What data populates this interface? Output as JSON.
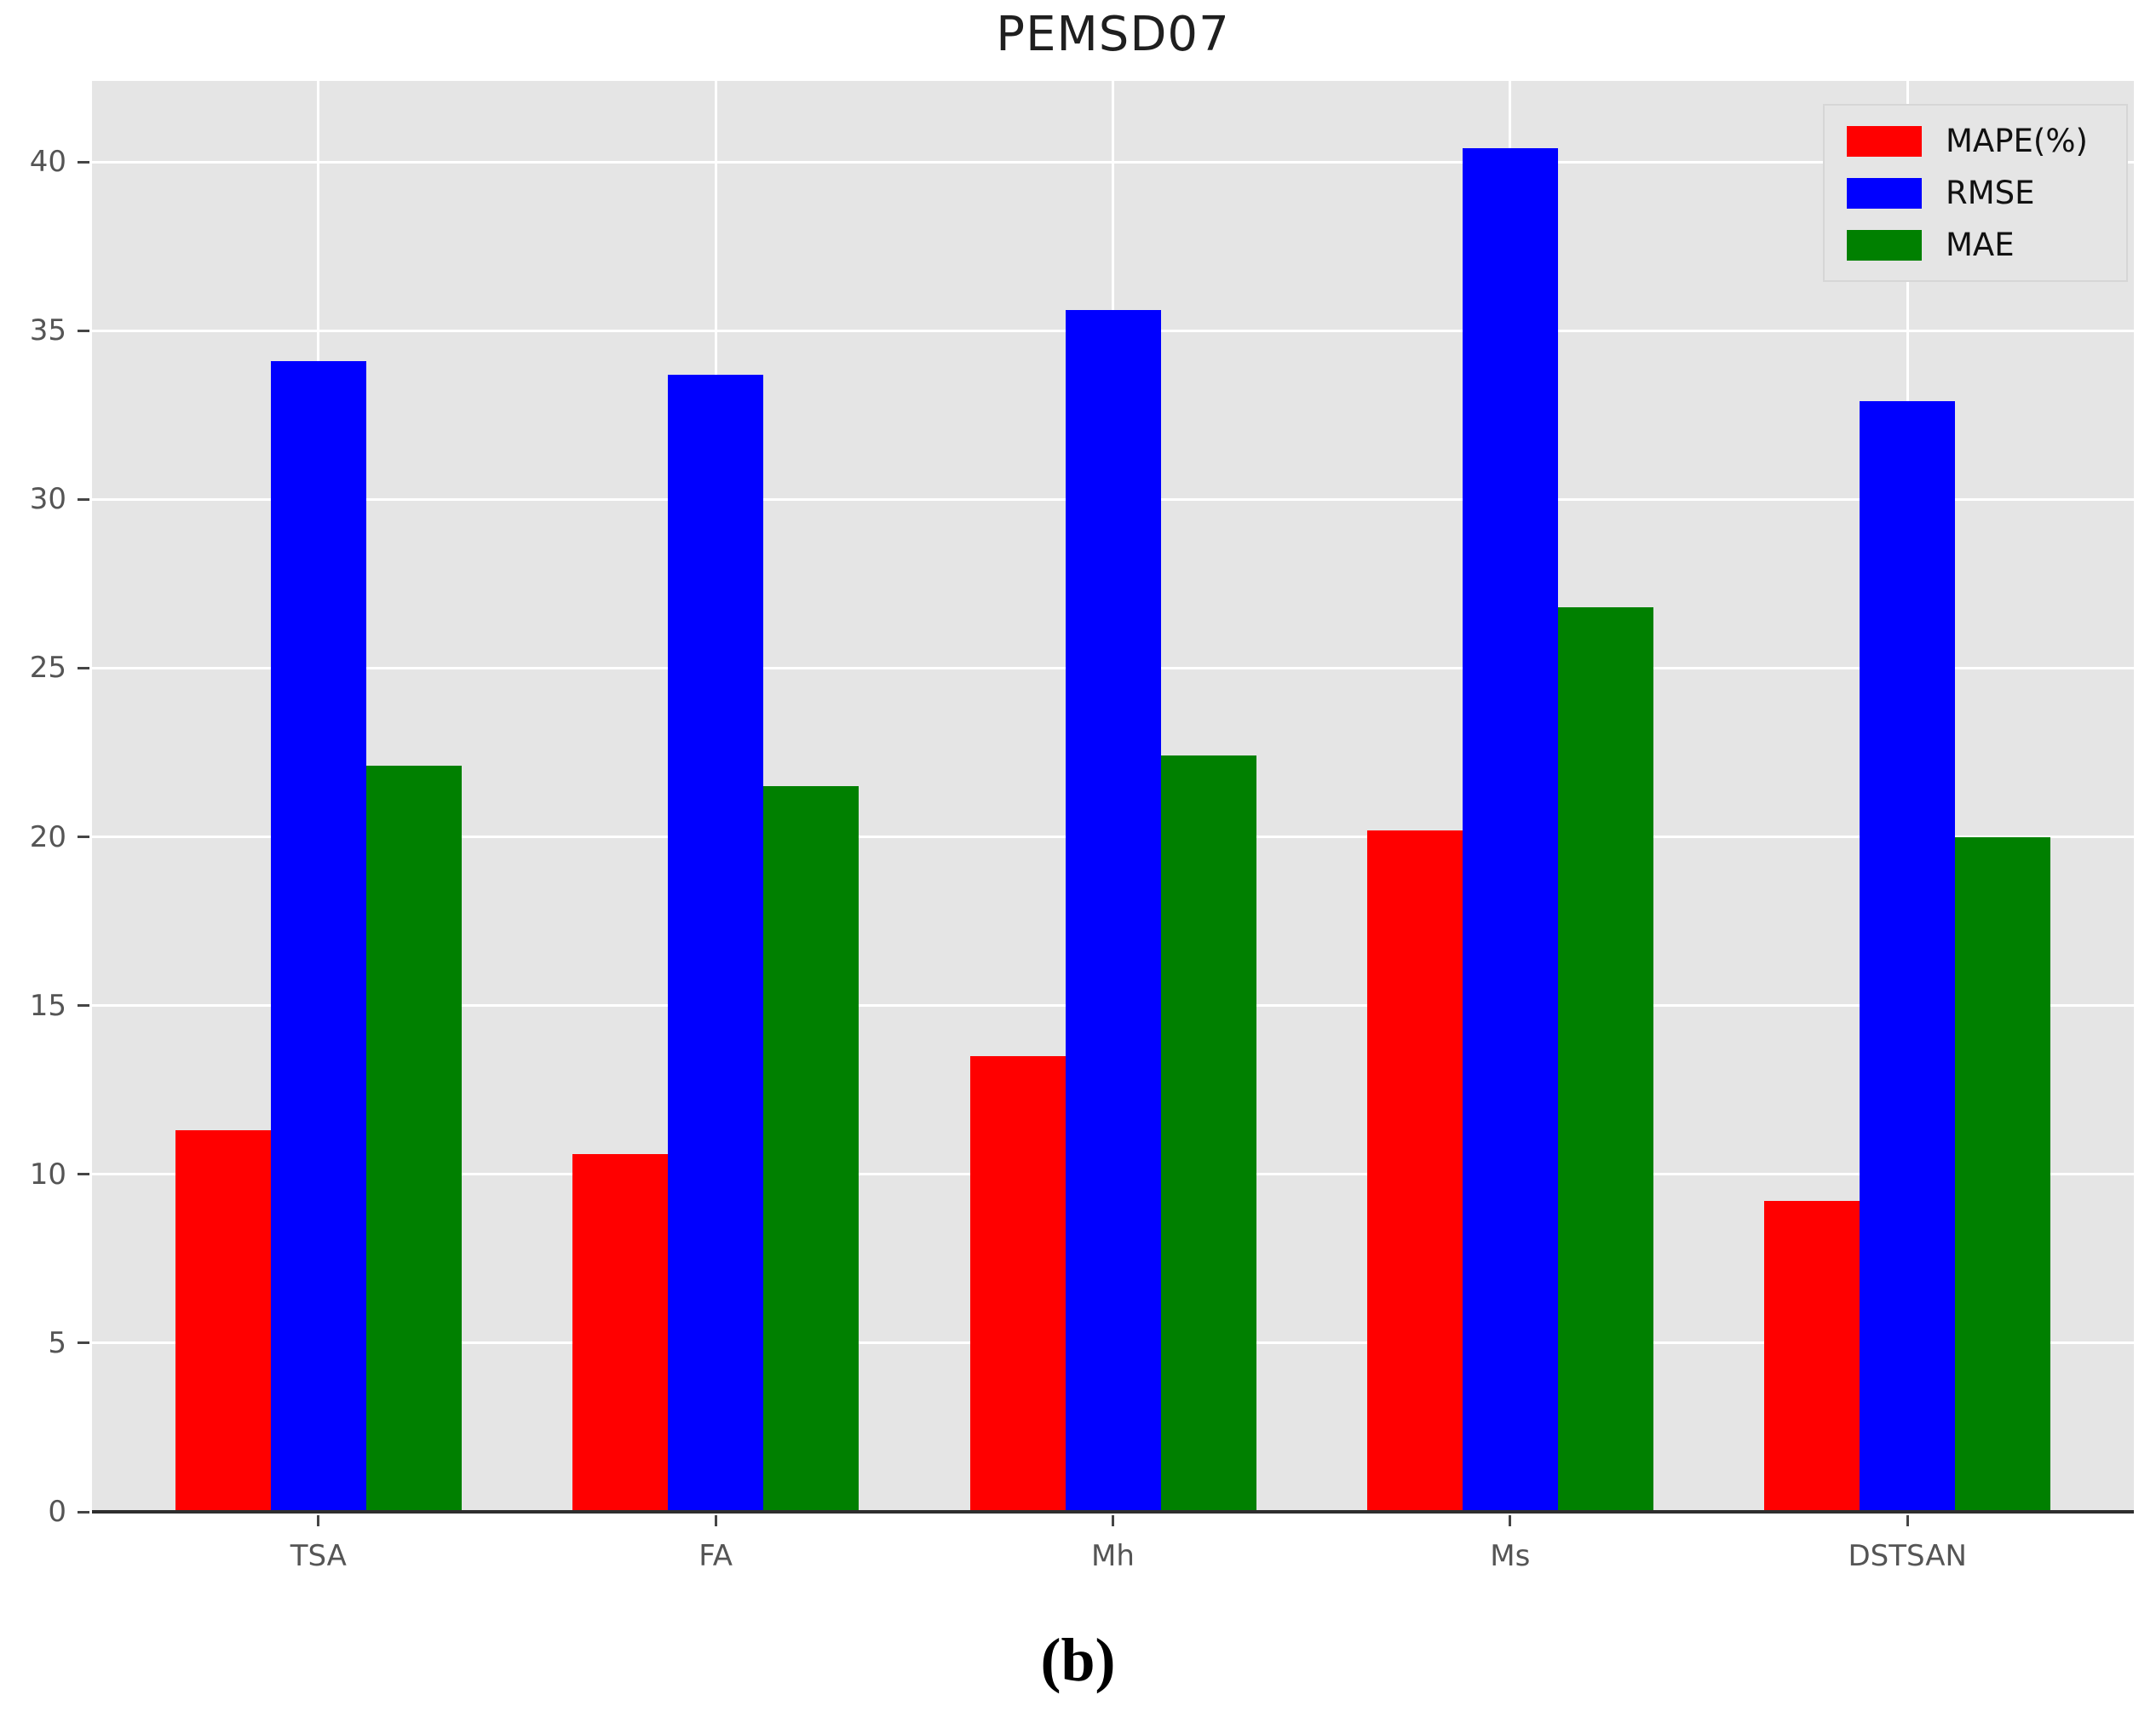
{
  "figure": {
    "title": "PEMSD07",
    "caption": "(b)"
  },
  "chart_data": {
    "type": "bar",
    "title": "PEMSD07",
    "caption": "(b)",
    "categories": [
      "TSA",
      "FA",
      "Mh",
      "Ms",
      "DSTSAN"
    ],
    "series": [
      {
        "name": "MAPE(%)",
        "color": "#ff0000",
        "values": [
          11.3,
          10.6,
          13.5,
          20.2,
          9.2
        ]
      },
      {
        "name": "RMSE",
        "color": "#0000ff",
        "values": [
          34.1,
          33.7,
          35.6,
          40.4,
          32.9
        ]
      },
      {
        "name": "MAE",
        "color": "#008000",
        "values": [
          22.1,
          21.5,
          22.4,
          26.8,
          20.0
        ]
      }
    ],
    "xlabel": "",
    "ylabel": "",
    "y_ticks": [
      0,
      5,
      10,
      15,
      20,
      25,
      30,
      35,
      40
    ],
    "ylim": [
      0,
      42.4
    ],
    "grid": true,
    "grid_color": "#ffffff",
    "plot_background": "#e5e5e5",
    "tick_label_color": "#555555",
    "title_color": "#1f1f1f",
    "legend_position": "upper right"
  }
}
